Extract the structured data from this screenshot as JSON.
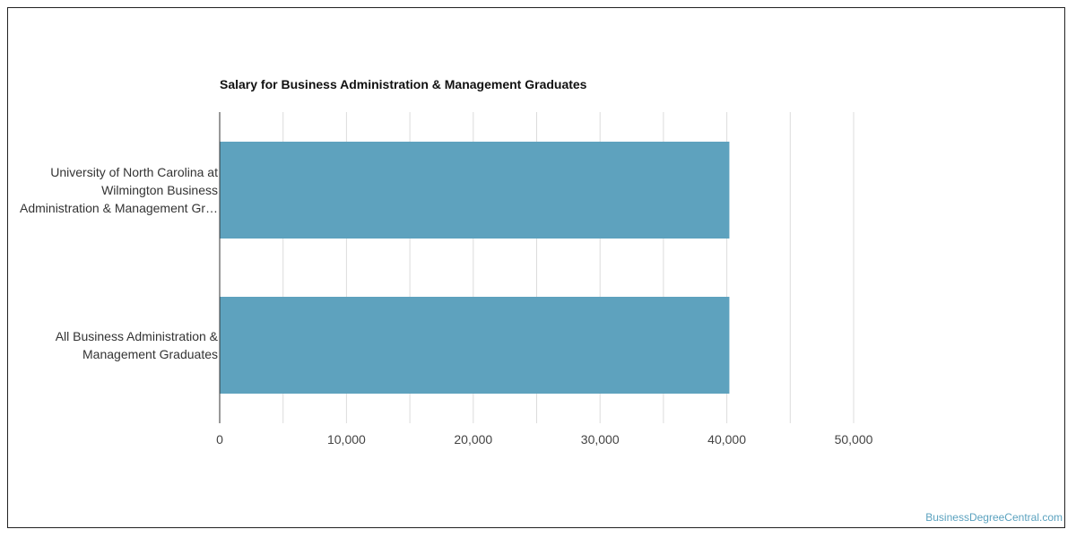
{
  "chart_data": {
    "type": "bar",
    "orientation": "horizontal",
    "title": "Salary for Business Administration & Management Graduates",
    "categories": [
      "University of North Carolina at Wilmington Business Administration & Management Gr…",
      "All Business Administration & Management Graduates"
    ],
    "category_lines": [
      [
        "University of North Carolina at",
        "Wilmington Business",
        "Administration & Management Gr…"
      ],
      [
        "All Business Administration &",
        "Management Graduates"
      ]
    ],
    "values": [
      40200,
      40200
    ],
    "xlim": [
      0,
      55000
    ],
    "xticks": [
      "0",
      "10,000",
      "20,000",
      "30,000",
      "40,000",
      "50,000"
    ],
    "grid": true,
    "bar_color": "#5ea2be"
  },
  "watermark": "BusinessDegreeCentral.com"
}
